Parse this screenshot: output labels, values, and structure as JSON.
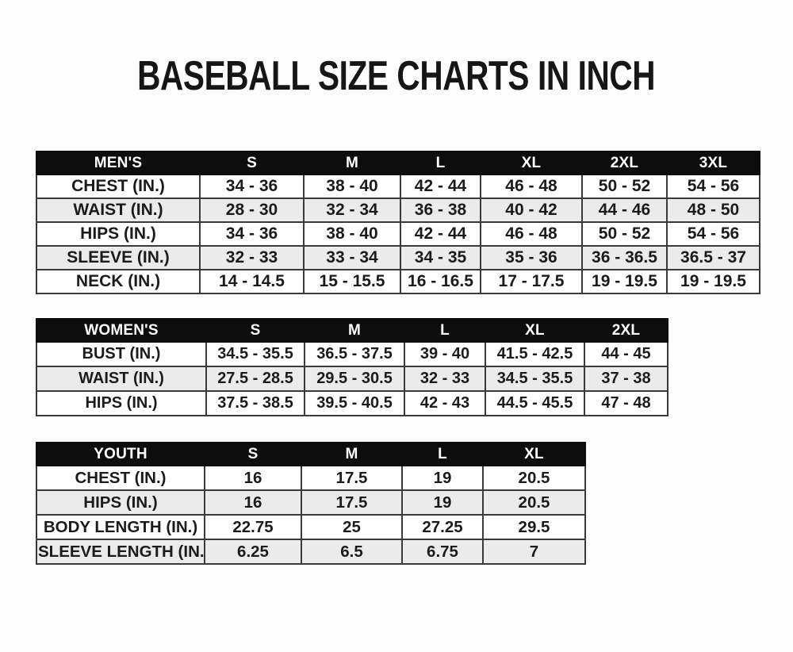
{
  "title": "BASEBALL SIZE CHARTS IN INCH",
  "colors": {
    "page_background": "#fdfdfd",
    "header_background": "#0d0d0d",
    "header_text": "#ffffff",
    "row_stripe": "#ebebeb",
    "cell_border": "#3a3a3a",
    "text": "#1b1b1b"
  },
  "chart_data": [
    {
      "type": "table",
      "title": "MEN'S",
      "columns": [
        "MEN'S",
        "S",
        "M",
        "L",
        "XL",
        "2XL",
        "3XL"
      ],
      "rows": [
        [
          "CHEST (IN.)",
          "34 - 36",
          "38 - 40",
          "42 - 44",
          "46 - 48",
          "50 - 52",
          "54 - 56"
        ],
        [
          "WAIST (IN.)",
          "28 - 30",
          "32 - 34",
          "36 - 38",
          "40 - 42",
          "44 - 46",
          "48 - 50"
        ],
        [
          "HIPS (IN.)",
          "34 - 36",
          "38 - 40",
          "42 - 44",
          "46 - 48",
          "50 - 52",
          "54 - 56"
        ],
        [
          "SLEEVE (IN.)",
          "32 - 33",
          "33 - 34",
          "34 - 35",
          "35 - 36",
          "36 - 36.5",
          "36.5 - 37"
        ],
        [
          "NECK (IN.)",
          "14 - 14.5",
          "15 - 15.5",
          "16 - 16.5",
          "17 - 17.5",
          "19 - 19.5",
          "19 - 19.5"
        ]
      ]
    },
    {
      "type": "table",
      "title": "WOMEN'S",
      "columns": [
        "WOMEN'S",
        "S",
        "M",
        "L",
        "XL",
        "2XL"
      ],
      "rows": [
        [
          "BUST (IN.)",
          "34.5 - 35.5",
          "36.5 - 37.5",
          "39 - 40",
          "41.5 - 42.5",
          "44 - 45"
        ],
        [
          "WAIST (IN.)",
          "27.5 - 28.5",
          "29.5 - 30.5",
          "32 - 33",
          "34.5 - 35.5",
          "37 - 38"
        ],
        [
          "HIPS (IN.)",
          "37.5 - 38.5",
          "39.5 - 40.5",
          "42 - 43",
          "44.5 - 45.5",
          "47 - 48"
        ]
      ]
    },
    {
      "type": "table",
      "title": "YOUTH",
      "columns": [
        "YOUTH",
        "S",
        "M",
        "L",
        "XL"
      ],
      "rows": [
        [
          "CHEST (IN.)",
          "16",
          "17.5",
          "19",
          "20.5"
        ],
        [
          "HIPS (IN.)",
          "16",
          "17.5",
          "19",
          "20.5"
        ],
        [
          "BODY LENGTH (IN.)",
          "22.75",
          "25",
          "27.25",
          "29.5"
        ],
        [
          "SLEEVE LENGTH (IN.)",
          "6.25",
          "6.5",
          "6.75",
          "7"
        ]
      ]
    }
  ]
}
